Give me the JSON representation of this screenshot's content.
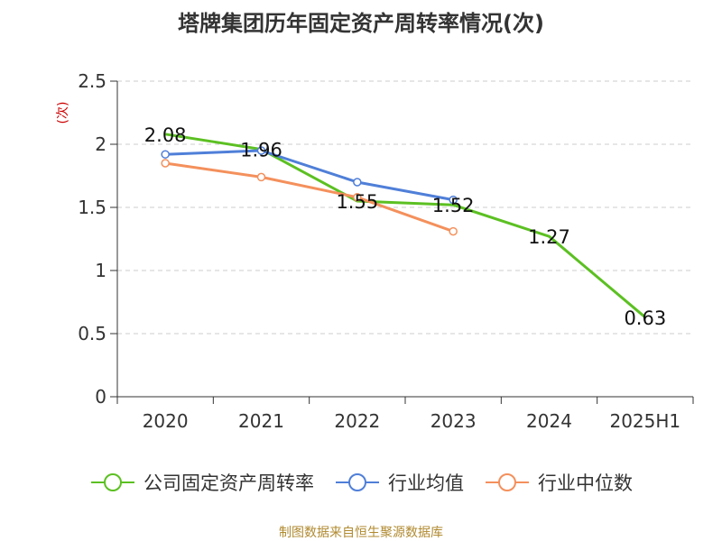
{
  "title": "塔牌集团历年固定资产周转率情况(次)",
  "source": "制图数据来自恒生聚源数据库",
  "chart_data": {
    "type": "line",
    "title": "塔牌集团历年固定资产周转率情况(次)",
    "ylabel": "(次)",
    "xlabel": "",
    "categories": [
      "2020",
      "2021",
      "2022",
      "2023",
      "2024",
      "2025H1"
    ],
    "y_ticks": [
      "0",
      "0.5",
      "1",
      "1.5",
      "2",
      "2.5"
    ],
    "ylim": [
      0,
      2.5
    ],
    "grid": "horizontal dashed",
    "legend_position": "bottom",
    "series": [
      {
        "name": "公司固定资产周转率",
        "color": "#5cc022",
        "values": [
          2.08,
          1.96,
          1.55,
          1.52,
          1.27,
          0.63
        ],
        "labels": [
          "2.08",
          "1.96",
          "1.55",
          "1.52",
          "1.27",
          "0.63"
        ],
        "show_labels": true,
        "show_markers": false
      },
      {
        "name": "行业均值",
        "color": "#4f7fd8",
        "values": [
          1.92,
          1.95,
          1.7,
          1.56,
          null,
          null
        ],
        "show_labels": false,
        "show_markers": true
      },
      {
        "name": "行业中位数",
        "color": "#f4905c",
        "values": [
          1.85,
          1.74,
          1.58,
          1.31,
          null,
          null
        ],
        "show_labels": false,
        "show_markers": true
      }
    ]
  }
}
